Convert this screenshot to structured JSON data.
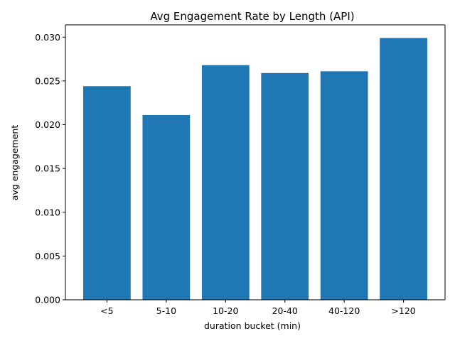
{
  "chart_data": {
    "type": "bar",
    "title": "Avg Engagement Rate by Length (API)",
    "xlabel": "duration bucket (min)",
    "ylabel": "avg engagement",
    "categories": [
      "<5",
      "5-10",
      "10-20",
      "20-40",
      "40-120",
      ">120"
    ],
    "values": [
      0.0244,
      0.0211,
      0.0268,
      0.0259,
      0.0261,
      0.0299
    ],
    "ylim": [
      0,
      0.0314
    ],
    "yticks": [
      0.0,
      0.005,
      0.01,
      0.015,
      0.02,
      0.025,
      0.03
    ],
    "ytick_labels": [
      "0.000",
      "0.005",
      "0.010",
      "0.015",
      "0.020",
      "0.025",
      "0.030"
    ],
    "grid": false,
    "bar_color": "#1f77b4"
  }
}
